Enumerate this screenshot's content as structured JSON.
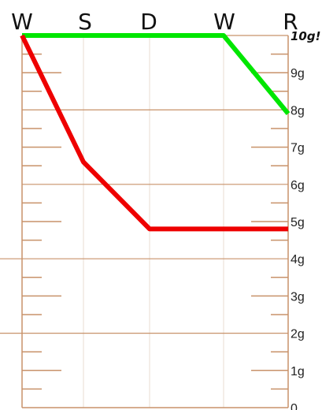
{
  "chart_data": {
    "type": "line",
    "categories": [
      "W",
      "S",
      "D",
      "W",
      "R"
    ],
    "y_tick_labels": [
      "10g!",
      "9g",
      "8g",
      "7g",
      "6g",
      "5g",
      "4g",
      "3g",
      "2g",
      "1g",
      "0"
    ],
    "ylim": [
      0,
      10
    ],
    "grid": true,
    "series": [
      {
        "color": "#00e600",
        "values": [
          10,
          10,
          10,
          10,
          7.9
        ]
      },
      {
        "color": "#ee0000",
        "values": [
          10,
          6.6,
          4.8,
          4.8,
          4.8
        ]
      }
    ]
  }
}
